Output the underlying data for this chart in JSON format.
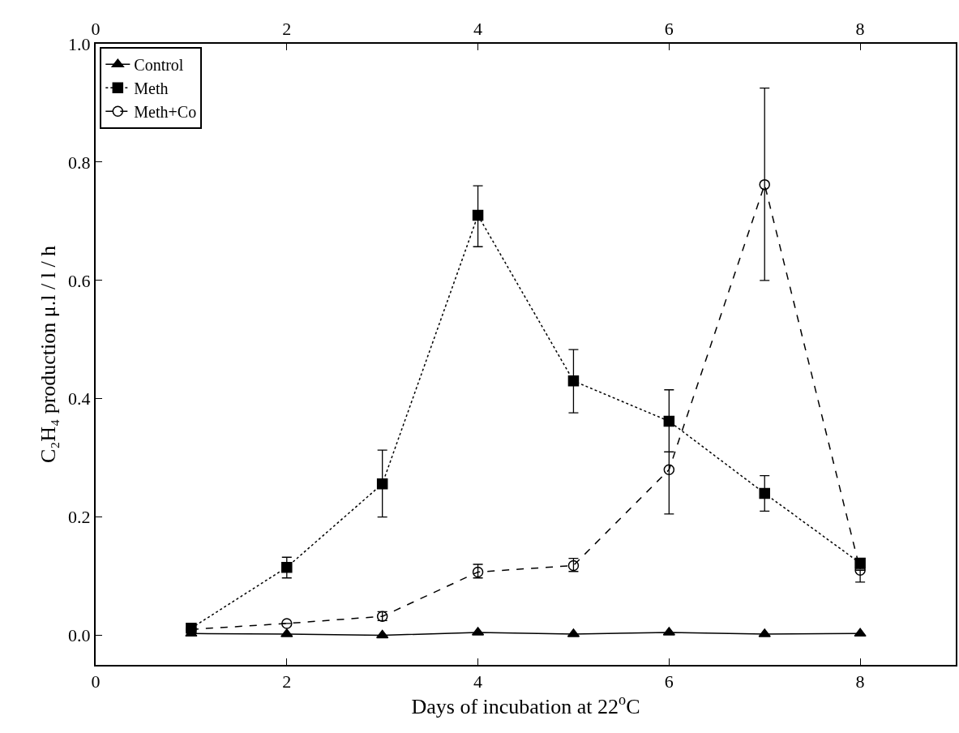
{
  "chart_data": {
    "type": "line",
    "xlabel": "Days of incubation at 22$^{o}$C",
    "ylabel": "C₂H₄ production μ.l / l / h",
    "x": [
      1,
      2,
      3,
      4,
      5,
      6,
      7,
      8
    ],
    "series": [
      {
        "name": "Control",
        "color": "#000000",
        "marker": "triangle",
        "line_style": "solid",
        "values": [
          0.003,
          0.002,
          0.0,
          0.005,
          0.002,
          0.005,
          0.002,
          0.003
        ]
      },
      {
        "name": "Meth",
        "color": "#000000",
        "marker": "square",
        "line_style": "dotted",
        "values": [
          0.012,
          0.115,
          0.256,
          0.71,
          0.43,
          0.362,
          0.24,
          0.122
        ],
        "errors": [
          null,
          [
            0.097,
            0.132
          ],
          [
            0.2,
            0.313
          ],
          [
            0.657,
            0.76
          ],
          [
            0.376,
            0.483
          ],
          [
            0.31,
            0.415
          ],
          [
            0.21,
            0.27
          ],
          [
            0.112,
            0.13
          ]
        ]
      },
      {
        "name": "Meth+Co",
        "color": "#000000",
        "marker": "circle-open",
        "line_style": "dashed",
        "values": [
          0.01,
          0.02,
          0.032,
          0.107,
          0.118,
          0.28,
          0.762,
          0.11
        ],
        "errors": [
          null,
          null,
          [
            0.025,
            0.04
          ],
          [
            0.097,
            0.12
          ],
          [
            0.108,
            0.13
          ],
          [
            0.205,
            0.31
          ],
          [
            0.6,
            0.925
          ],
          [
            0.09,
            0.11
          ]
        ]
      }
    ],
    "xlim": [
      0,
      9
    ],
    "xticks": [
      0,
      2,
      4,
      6,
      8
    ],
    "x2lim": [
      0,
      9
    ],
    "x2ticks": [
      0,
      2,
      4,
      6,
      8
    ],
    "ylim": [
      -0.05,
      1.0
    ],
    "yticks": [
      {
        "value": 0,
        "label": "0.0"
      },
      0.2,
      0.4,
      0.6,
      0.8,
      {
        "value": 1,
        "label": "1.0"
      }
    ],
    "grid": false,
    "legend": "top left"
  }
}
